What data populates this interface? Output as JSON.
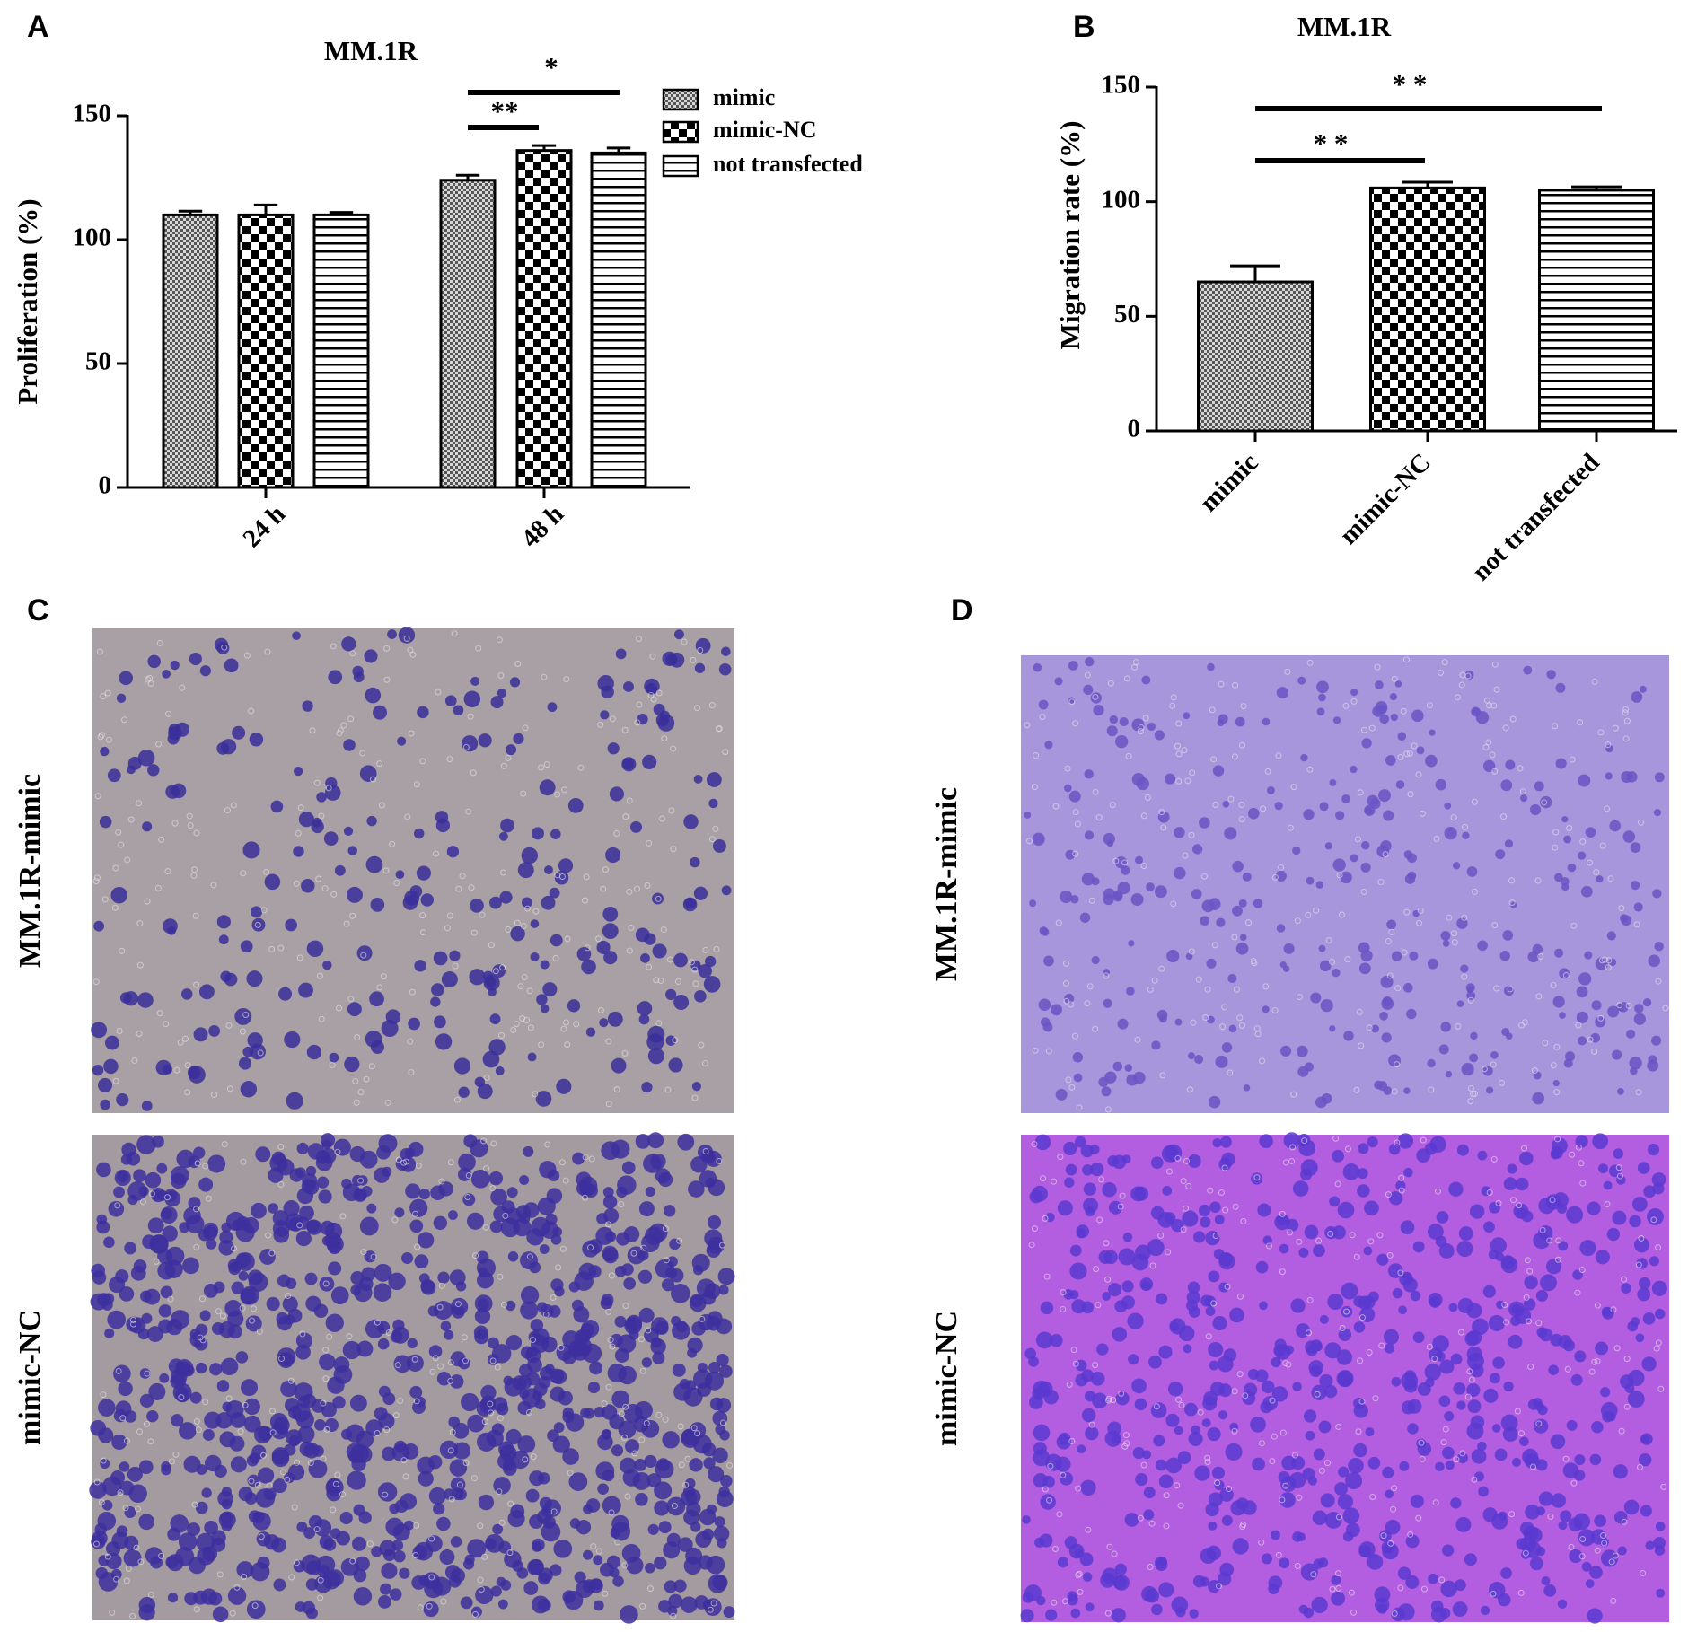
{
  "chart_data": [
    {
      "type": "grouped-bar",
      "panel": "A",
      "title": "MM.1R",
      "y_label": "Proliferation (%)",
      "categories": [
        "24 h",
        "48 h"
      ],
      "series": [
        {
          "name": "mimic",
          "pattern": "fine-check",
          "values": [
            110,
            124
          ],
          "errors": [
            1.5,
            2
          ]
        },
        {
          "name": "mimic-NC",
          "pattern": "check",
          "values": [
            110,
            136
          ],
          "errors": [
            4,
            2
          ]
        },
        {
          "name": "not transfected",
          "pattern": "hstripe",
          "values": [
            110,
            135
          ],
          "errors": [
            1,
            2
          ]
        }
      ],
      "ylim": [
        0,
        150
      ],
      "yticks": [
        0,
        50,
        100,
        150
      ],
      "annotations": [
        "**",
        "*"
      ]
    },
    {
      "type": "bar",
      "panel": "B",
      "title": "MM.1R",
      "y_label": "Migration rate (%)",
      "categories": [
        "mimic",
        "mimic-NC",
        "not transfected"
      ],
      "patterns": [
        "fine-check",
        "check",
        "hstripe"
      ],
      "values": [
        65,
        106,
        105
      ],
      "errors": [
        7,
        2.5,
        1.5
      ],
      "ylim": [
        0,
        150
      ],
      "yticks": [
        0,
        50,
        100,
        150
      ],
      "annotations": [
        "* *",
        "* *"
      ]
    }
  ],
  "micrographs": [
    {
      "panel": "C",
      "rows": [
        "MM.1R-mimic",
        "mimic-NC"
      ]
    },
    {
      "panel": "D",
      "rows": [
        "MM.1R-mimic",
        "mimic-NC"
      ]
    }
  ]
}
